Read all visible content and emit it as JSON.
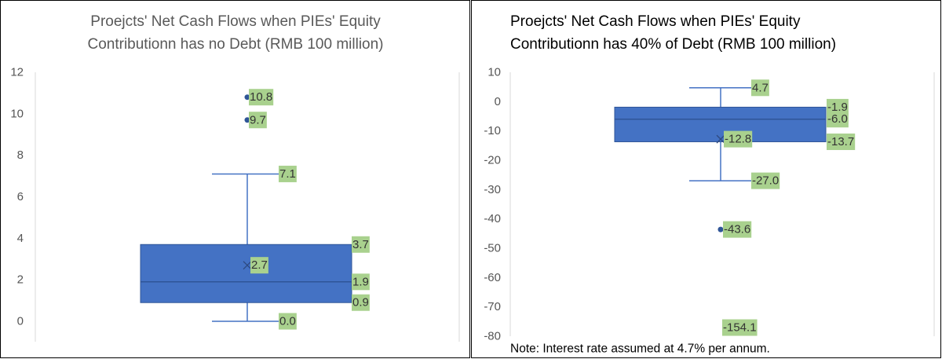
{
  "colors": {
    "box": "#4472C4",
    "box_edge": "#2F5597",
    "label_bg": "#A9D18E",
    "axis": "#D9D9D9",
    "title_left": "#595959",
    "title_right": "#000000"
  },
  "chart_data": [
    {
      "type": "box",
      "title_lines": [
        "Proejcts' Net Cash Flows when PIEs' Equity",
        "Contributionn has no Debt (RMB 100 million)"
      ],
      "ylim": [
        0,
        12
      ],
      "yticks": [
        0,
        2,
        4,
        6,
        8,
        10,
        12
      ],
      "box": {
        "min": 0.0,
        "q1": 0.9,
        "median": 1.9,
        "mean": 2.7,
        "q3": 3.7,
        "max": 7.1
      },
      "outliers": [
        9.7,
        10.8
      ],
      "labels": [
        {
          "value": 10.8,
          "text": "10.8",
          "anchor": "point"
        },
        {
          "value": 9.7,
          "text": "9.7",
          "anchor": "point"
        },
        {
          "value": 7.1,
          "text": "7.1",
          "anchor": "whisker"
        },
        {
          "value": 3.7,
          "text": "3.7",
          "anchor": "box"
        },
        {
          "value": 2.7,
          "text": "2.7",
          "anchor": "mean"
        },
        {
          "value": 1.9,
          "text": "1.9",
          "anchor": "box"
        },
        {
          "value": 0.9,
          "text": "0.9",
          "anchor": "box-low"
        },
        {
          "value": 0.0,
          "text": "0.0",
          "anchor": "whisker"
        }
      ],
      "note": ""
    },
    {
      "type": "box",
      "title_lines": [
        "Proejcts' Net Cash Flows when PIEs' Equity",
        "Contributionn has 40% of Debt (RMB 100 million)"
      ],
      "ylim": [
        -80,
        10
      ],
      "yticks": [
        10,
        0,
        -10,
        -20,
        -30,
        -40,
        -50,
        -60,
        -70,
        -80
      ],
      "box": {
        "min": -27.0,
        "q1": -13.7,
        "median": -6.0,
        "mean": -12.8,
        "q3": -1.9,
        "max": 4.7
      },
      "outliers": [
        -43.6
      ],
      "labels": [
        {
          "value": 4.7,
          "text": "4.7",
          "anchor": "whisker"
        },
        {
          "value": -1.9,
          "text": "-1.9",
          "anchor": "box"
        },
        {
          "value": -6.0,
          "text": "-6.0",
          "anchor": "box"
        },
        {
          "value": -12.8,
          "text": "-12.8",
          "anchor": "mean"
        },
        {
          "value": -13.7,
          "text": "-13.7",
          "anchor": "box-low"
        },
        {
          "value": -27.0,
          "text": "-27.0",
          "anchor": "whisker"
        },
        {
          "value": -43.6,
          "text": "-43.6",
          "anchor": "point"
        },
        {
          "value": -154.1,
          "text": "-154.1",
          "anchor": "offscale"
        }
      ],
      "note": "Note: Interest rate assumed at 4.7% per annum."
    }
  ]
}
